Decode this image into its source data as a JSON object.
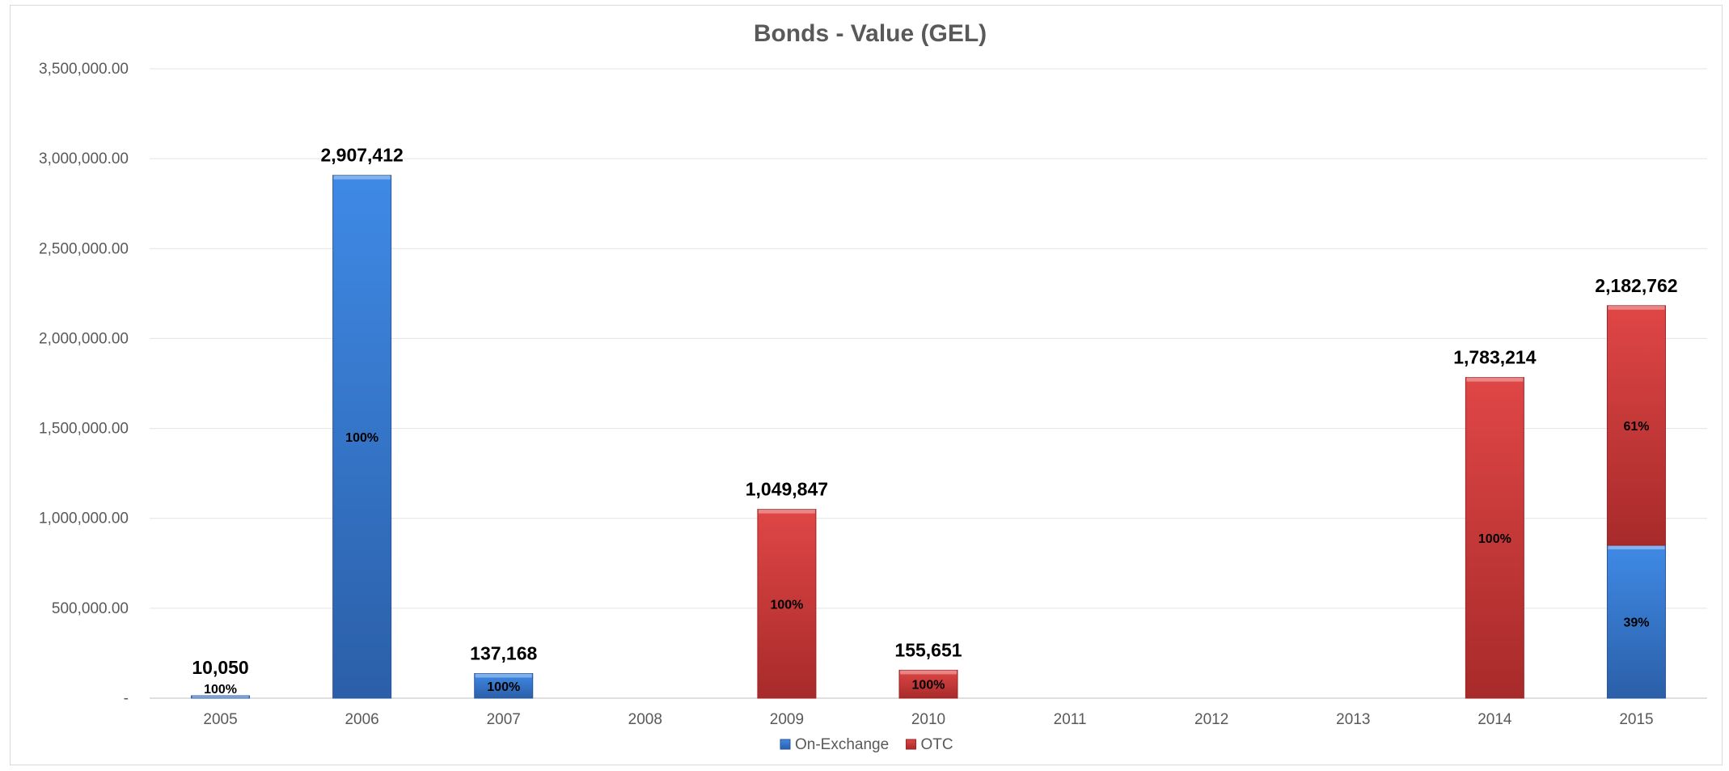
{
  "chart_data": {
    "type": "bar",
    "stacked": true,
    "title": "Bonds - Value (GEL)",
    "xlabel": "",
    "ylabel": "",
    "ylim": [
      0,
      3500000
    ],
    "y_tick_values": [
      0,
      500000,
      1000000,
      1500000,
      2000000,
      2500000,
      3000000,
      3500000
    ],
    "y_tick_labels": [
      "-",
      "500,000.00",
      "1,000,000.00",
      "1,500,000.00",
      "2,000,000.00",
      "2,500,000.00",
      "3,000,000.00",
      "3,500,000.00"
    ],
    "categories": [
      "2005",
      "2006",
      "2007",
      "2008",
      "2009",
      "2010",
      "2011",
      "2012",
      "2013",
      "2014",
      "2015"
    ],
    "series": [
      {
        "name": "On-Exchange",
        "color": "#3a7fd5",
        "values": [
          10050,
          2907412,
          137168,
          0,
          0,
          0,
          0,
          0,
          0,
          0,
          850000
        ],
        "labels": [
          "100%",
          "100%",
          "100%",
          "",
          "",
          "",
          "",
          "",
          "",
          "",
          "39%"
        ]
      },
      {
        "name": "OTC",
        "color": "#d23b3b",
        "values": [
          0,
          0,
          0,
          0,
          1049847,
          155651,
          0,
          0,
          0,
          1783214,
          1332762
        ],
        "labels": [
          "",
          "",
          "",
          "",
          "100%",
          "100%",
          "",
          "",
          "",
          "100%",
          "61%"
        ]
      }
    ],
    "totals": [
      "10,050",
      "2,907,412",
      "137,168",
      "",
      "1,049,847",
      "155,651",
      "",
      "",
      "",
      "1,783,214",
      "2,182,762"
    ],
    "grid": true,
    "legend_position": "bottom"
  }
}
